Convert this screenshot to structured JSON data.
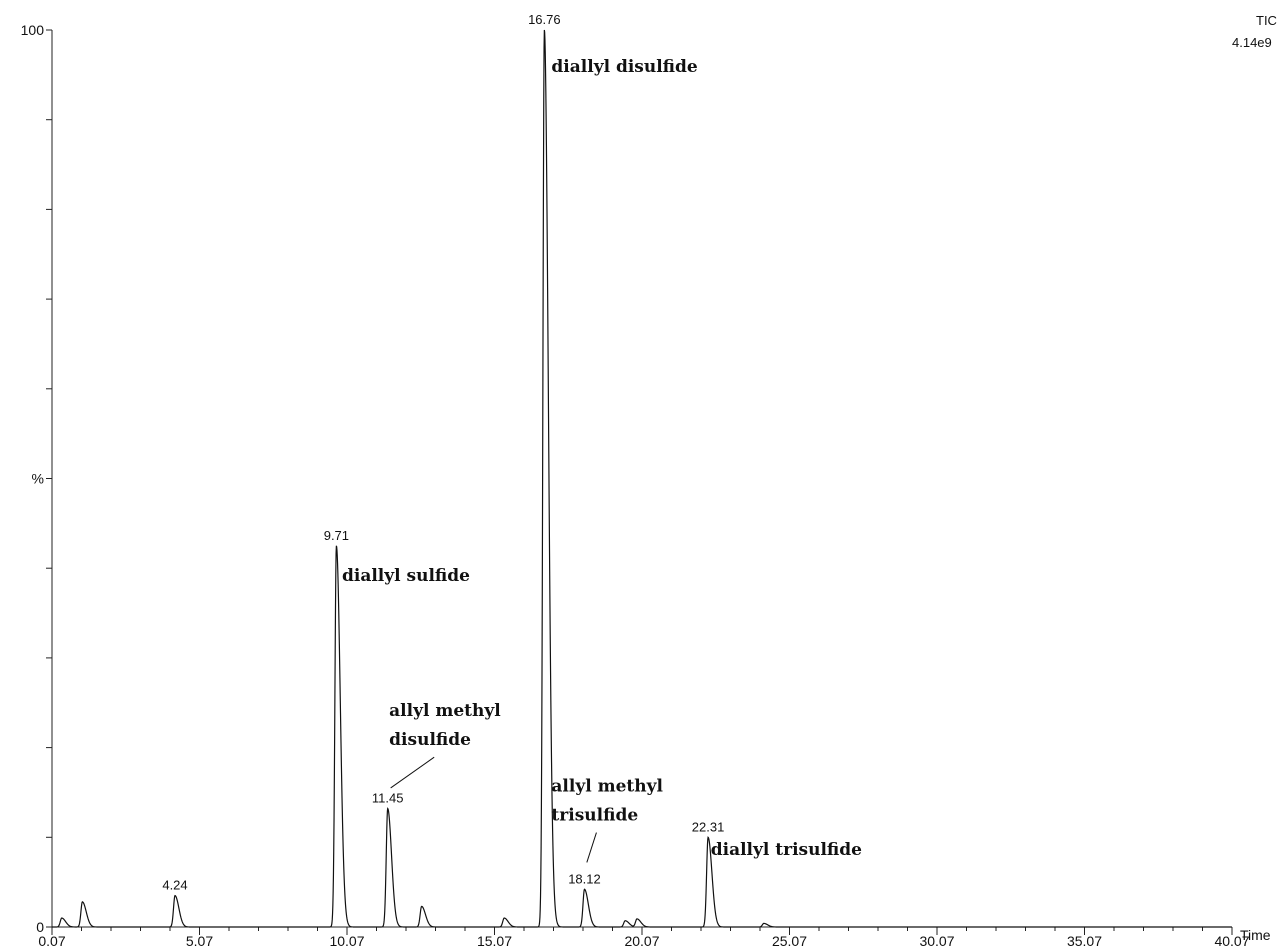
{
  "chart_data": {
    "type": "line",
    "trace_label": "TIC",
    "intensity_label": "4.14e9",
    "ylabel": "%",
    "xlabel": "Time",
    "xlim": [
      0.07,
      40.07
    ],
    "ylim": [
      0,
      100
    ],
    "x_ticks": [
      "0.07",
      "5.07",
      "10.07",
      "15.07",
      "20.07",
      "25.07",
      "30.07",
      "35.07",
      "40.07"
    ],
    "y_ticks": [
      "0",
      "%",
      "100"
    ],
    "grid": false,
    "series": [
      {
        "peaks": [
          {
            "x": 0.4,
            "y": 1.0
          },
          {
            "x": 1.1,
            "y": 2.8
          },
          {
            "x": 4.24,
            "y": 3.5
          },
          {
            "x": 9.71,
            "y": 42.5
          },
          {
            "x": 11.45,
            "y": 13.2
          },
          {
            "x": 12.6,
            "y": 2.3
          },
          {
            "x": 15.4,
            "y": 1.0
          },
          {
            "x": 16.76,
            "y": 100
          },
          {
            "x": 16.9,
            "y": 1.6
          },
          {
            "x": 18.12,
            "y": 4.2
          },
          {
            "x": 19.5,
            "y": 0.7
          },
          {
            "x": 19.9,
            "y": 0.9
          },
          {
            "x": 22.31,
            "y": 10.0
          },
          {
            "x": 24.2,
            "y": 0.4
          }
        ]
      }
    ],
    "peak_labels": [
      {
        "x": 4.24,
        "y": 3.5,
        "text": "4.24"
      },
      {
        "x": 9.71,
        "y": 42.5,
        "text": "9.71"
      },
      {
        "x": 11.45,
        "y": 13.2,
        "text": "11.45"
      },
      {
        "x": 16.76,
        "y": 100,
        "text": "16.76"
      },
      {
        "x": 18.12,
        "y": 4.2,
        "text": "18.12"
      },
      {
        "x": 22.31,
        "y": 10.0,
        "text": "22.31"
      }
    ],
    "annotations": [
      {
        "lines": [
          "diallyl disulfide"
        ],
        "x": 17.0,
        "y": 95.3,
        "leader": false
      },
      {
        "lines": [
          "diallyl sulfide"
        ],
        "x": 9.9,
        "y": 38.6,
        "leader": false
      },
      {
        "lines": [
          "allyl methyl",
          "disulfide"
        ],
        "x": 11.5,
        "y": 23.5,
        "leader": true,
        "leader_to": {
          "x": 11.55,
          "y": 15.5
        }
      },
      {
        "lines": [
          "allyl methyl",
          "trisulfide"
        ],
        "x": 17.0,
        "y": 15.1,
        "leader": true,
        "leader_to": {
          "x": 18.2,
          "y": 7.2
        }
      },
      {
        "lines": [
          "diallyl trisulfide"
        ],
        "x": 22.4,
        "y": 8.0,
        "leader": false
      }
    ]
  }
}
